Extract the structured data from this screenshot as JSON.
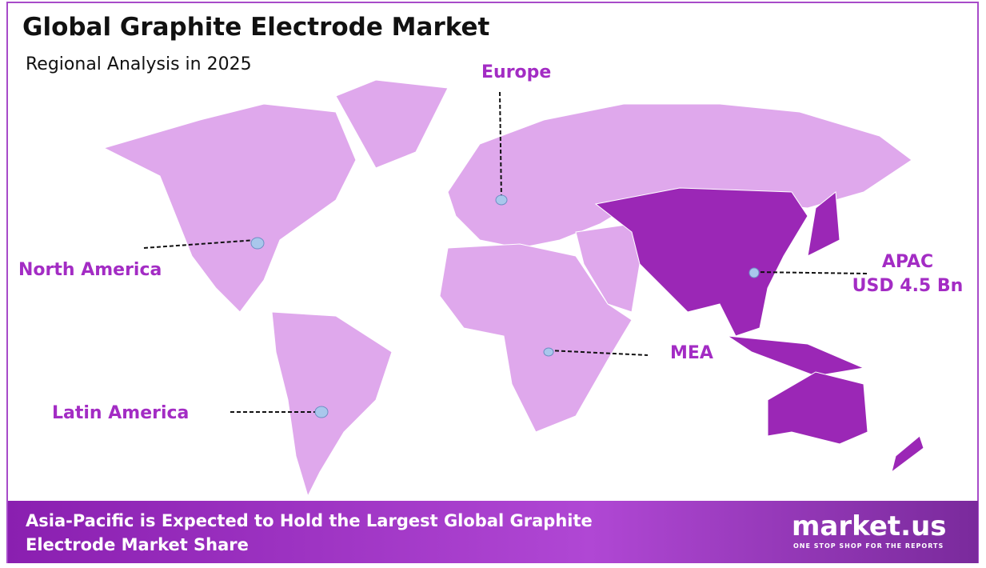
{
  "header": {
    "title": "Global Graphite Electrode Market",
    "subtitle": "Regional Analysis in 2025"
  },
  "regions": [
    {
      "label": "Europe"
    },
    {
      "label": "North America"
    },
    {
      "label": "APAC",
      "value": "USD 4.5 Bn"
    },
    {
      "label": "MEA"
    },
    {
      "label": "Latin America"
    }
  ],
  "footer": {
    "text": "Asia-Pacific is Expected to Hold the Largest Global Graphite Electrode Market Share",
    "brand": "market.us",
    "tagline": "ONE STOP SHOP FOR THE REPORTS"
  }
}
